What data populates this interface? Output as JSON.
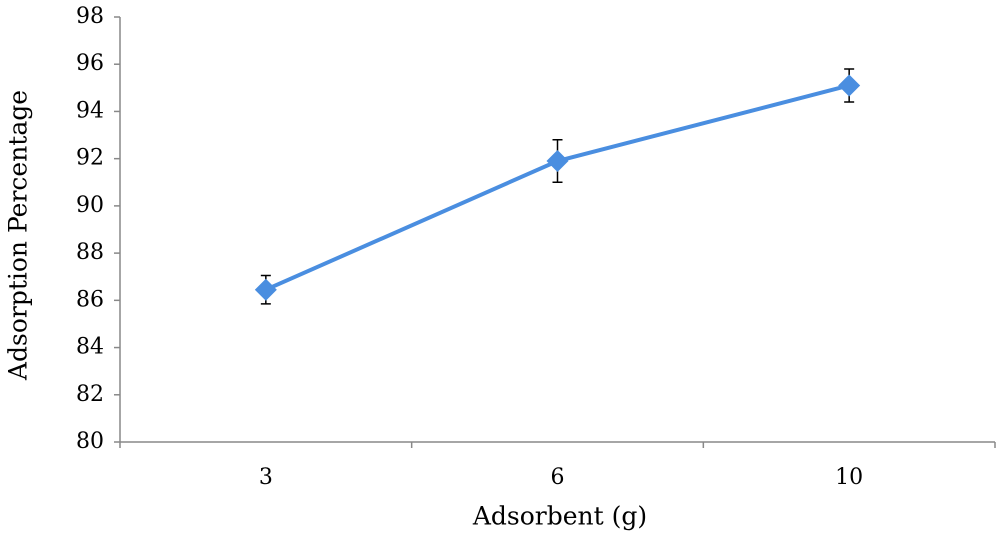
{
  "chart_data": {
    "type": "line",
    "x_label": "Adsorbent (g)",
    "y_label": "Adsorption Percentage",
    "categories": [
      "3",
      "6",
      "10"
    ],
    "values": [
      86.45,
      91.9,
      95.1
    ],
    "errors": [
      0.6,
      0.9,
      0.7
    ],
    "color": "#4a8ee0",
    "ylim": [
      80,
      98
    ],
    "yticks": [
      80,
      82,
      84,
      86,
      88,
      90,
      92,
      94,
      96,
      98
    ],
    "grid": false
  }
}
